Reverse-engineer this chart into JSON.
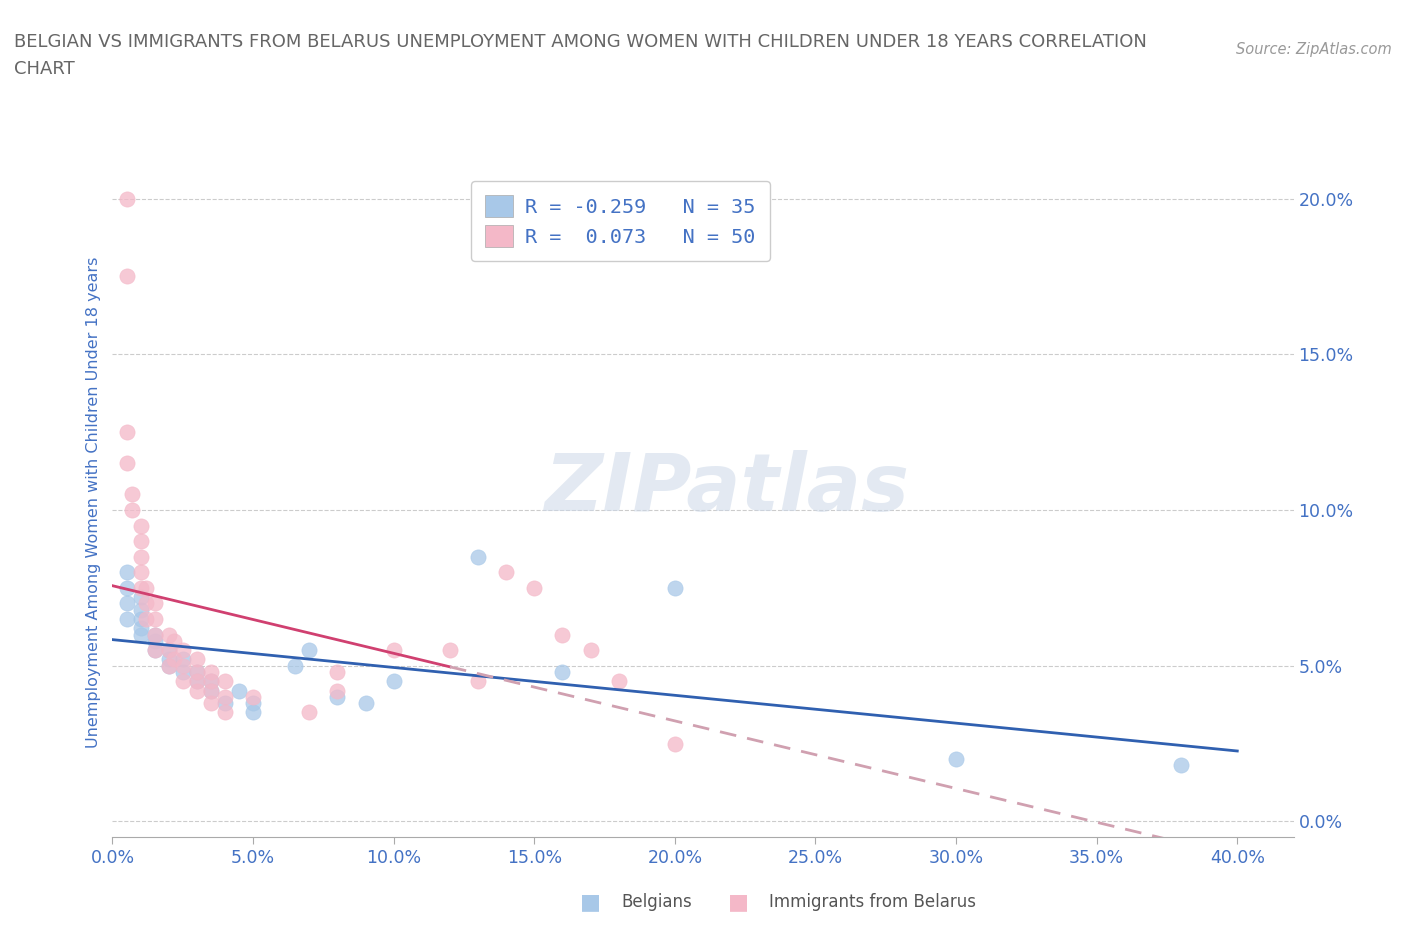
{
  "title_line1": "BELGIAN VS IMMIGRANTS FROM BELARUS UNEMPLOYMENT AMONG WOMEN WITH CHILDREN UNDER 18 YEARS CORRELATION",
  "title_line2": "CHART",
  "source": "Source: ZipAtlas.com",
  "ylabel_label": "Unemployment Among Women with Children Under 18 years",
  "xlim": [
    0.0,
    0.42
  ],
  "ylim": [
    -0.005,
    0.21
  ],
  "xtick_vals": [
    0.0,
    0.05,
    0.1,
    0.15,
    0.2,
    0.25,
    0.3,
    0.35,
    0.4
  ],
  "ytick_vals": [
    0.0,
    0.05,
    0.1,
    0.15,
    0.2
  ],
  "legend_r_n": [
    {
      "R": -0.259,
      "N": 35,
      "color": "#a8c8e8"
    },
    {
      "R": 0.073,
      "N": 50,
      "color": "#f4b8c8"
    }
  ],
  "watermark": "ZIPatlas",
  "belgians_x": [
    0.005,
    0.005,
    0.005,
    0.005,
    0.01,
    0.01,
    0.01,
    0.01,
    0.01,
    0.015,
    0.015,
    0.015,
    0.02,
    0.02,
    0.02,
    0.025,
    0.025,
    0.03,
    0.03,
    0.035,
    0.035,
    0.04,
    0.045,
    0.05,
    0.05,
    0.065,
    0.07,
    0.08,
    0.09,
    0.1,
    0.13,
    0.16,
    0.2,
    0.3,
    0.38
  ],
  "belgians_y": [
    0.065,
    0.07,
    0.075,
    0.08,
    0.06,
    0.062,
    0.065,
    0.068,
    0.072,
    0.055,
    0.058,
    0.06,
    0.05,
    0.052,
    0.055,
    0.048,
    0.052,
    0.045,
    0.048,
    0.042,
    0.045,
    0.038,
    0.042,
    0.035,
    0.038,
    0.05,
    0.055,
    0.04,
    0.038,
    0.045,
    0.085,
    0.048,
    0.075,
    0.02,
    0.018
  ],
  "belarus_x": [
    0.005,
    0.005,
    0.005,
    0.005,
    0.007,
    0.007,
    0.01,
    0.01,
    0.01,
    0.01,
    0.01,
    0.012,
    0.012,
    0.012,
    0.015,
    0.015,
    0.015,
    0.015,
    0.02,
    0.02,
    0.02,
    0.022,
    0.022,
    0.025,
    0.025,
    0.025,
    0.03,
    0.03,
    0.03,
    0.03,
    0.035,
    0.035,
    0.035,
    0.035,
    0.04,
    0.04,
    0.04,
    0.05,
    0.07,
    0.08,
    0.08,
    0.1,
    0.12,
    0.13,
    0.14,
    0.15,
    0.16,
    0.17,
    0.18,
    0.2
  ],
  "belarus_y": [
    0.2,
    0.175,
    0.125,
    0.115,
    0.105,
    0.1,
    0.095,
    0.09,
    0.085,
    0.08,
    0.075,
    0.075,
    0.07,
    0.065,
    0.07,
    0.065,
    0.06,
    0.055,
    0.06,
    0.055,
    0.05,
    0.058,
    0.052,
    0.055,
    0.05,
    0.045,
    0.052,
    0.048,
    0.045,
    0.042,
    0.048,
    0.045,
    0.042,
    0.038,
    0.045,
    0.04,
    0.035,
    0.04,
    0.035,
    0.048,
    0.042,
    0.055,
    0.055,
    0.045,
    0.08,
    0.075,
    0.06,
    0.055,
    0.045,
    0.025
  ],
  "belgian_color": "#a8c8e8",
  "belarus_color": "#f4b8c8",
  "trendline_belgian_color": "#3060b0",
  "trendline_belarus_color": "#d04070",
  "trendline_dashed_color": "#d0a0b0",
  "background_color": "#ffffff",
  "grid_color": "#cccccc",
  "tick_color": "#4472c4",
  "title_color": "#666666",
  "source_color": "#999999"
}
